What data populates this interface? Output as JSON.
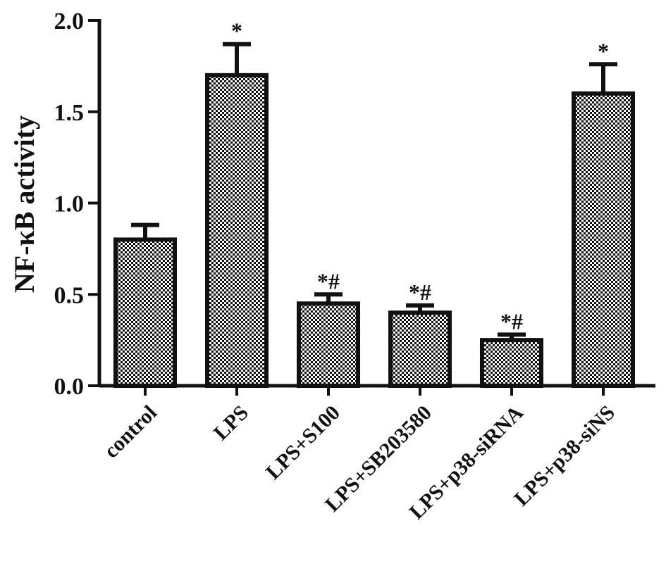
{
  "chart_data": {
    "type": "bar",
    "title": "",
    "xlabel": "",
    "ylabel": "NF-κB  activity",
    "ylim": [
      0,
      2.0
    ],
    "yticks": [
      "0.0",
      "0.5",
      "1.0",
      "1.5",
      "2.0"
    ],
    "grid": false,
    "legend": "none",
    "categories": [
      "control",
      "LPS",
      "LPS+S100",
      "LPS+SB203580",
      "LPS+p38-siRNA",
      "LPS+p38-siNS"
    ],
    "values": [
      0.8,
      1.7,
      0.45,
      0.4,
      0.25,
      1.6
    ],
    "error": [
      0.08,
      0.17,
      0.05,
      0.04,
      0.03,
      0.16
    ],
    "annotations": [
      "",
      "*",
      "*#",
      "*#",
      "*#",
      "*"
    ],
    "colors": {
      "bar_fill": "#ffffff",
      "bar_pattern": "#111111",
      "axis": "#111111"
    }
  }
}
